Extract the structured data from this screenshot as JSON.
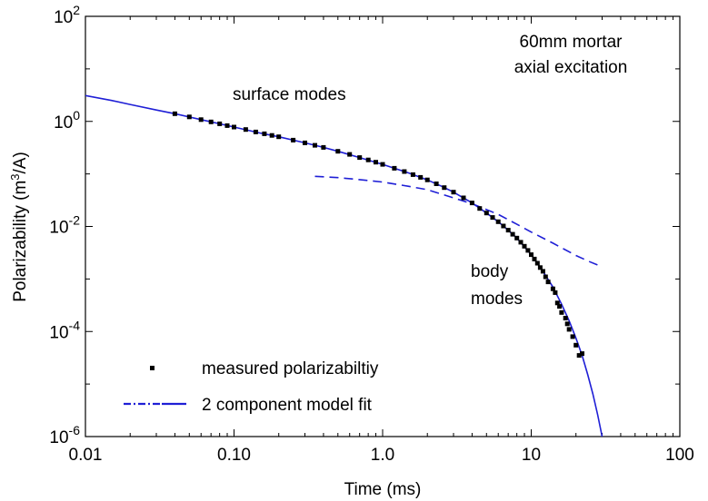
{
  "chart_data": {
    "type": "scatter",
    "xlabel": "Time (ms)",
    "ylabel_main": "Polarizability (m",
    "ylabel_sup": "3",
    "ylabel_tail": "/A)",
    "xscale": "log",
    "yscale": "log",
    "xlim": [
      0.01,
      100
    ],
    "ylim": [
      1e-06,
      100
    ],
    "x_ticks": [
      {
        "value": 0.01,
        "label": "0.01"
      },
      {
        "value": 0.1,
        "label": "0.10"
      },
      {
        "value": 1,
        "label": "1.0"
      },
      {
        "value": 10,
        "label": "10"
      },
      {
        "value": 100,
        "label": "100"
      }
    ],
    "y_ticks": [
      {
        "value": 1e-06,
        "base": "10",
        "exp": "-6"
      },
      {
        "value": 0.0001,
        "base": "10",
        "exp": "-4"
      },
      {
        "value": 0.01,
        "base": "10",
        "exp": "-2"
      },
      {
        "value": 1,
        "base": "10",
        "exp": "0"
      },
      {
        "value": 100,
        "base": "10",
        "exp": "2"
      }
    ],
    "grid": false,
    "legend_position": "bottom-left",
    "colors": {
      "fit": "#1f1fd6",
      "measured": "#000000"
    },
    "annotations": [
      {
        "lines": [
          "60mm mortar",
          "axial excitation"
        ],
        "anchor": "top-right"
      },
      {
        "lines": [
          "surface modes"
        ],
        "anchor": "upper-left"
      },
      {
        "lines": [
          "body",
          "modes"
        ],
        "anchor": "right"
      }
    ],
    "series": [
      {
        "name": "measured polarizabiltiy",
        "style": "markers",
        "points": [
          [
            0.04,
            1.4
          ],
          [
            0.05,
            1.22
          ],
          [
            0.06,
            1.08
          ],
          [
            0.07,
            0.98
          ],
          [
            0.08,
            0.9
          ],
          [
            0.09,
            0.83
          ],
          [
            0.1,
            0.78
          ],
          [
            0.12,
            0.7
          ],
          [
            0.14,
            0.63
          ],
          [
            0.16,
            0.58
          ],
          [
            0.18,
            0.54
          ],
          [
            0.2,
            0.51
          ],
          [
            0.25,
            0.44
          ],
          [
            0.3,
            0.39
          ],
          [
            0.35,
            0.35
          ],
          [
            0.4,
            0.32
          ],
          [
            0.5,
            0.27
          ],
          [
            0.6,
            0.235
          ],
          [
            0.7,
            0.205
          ],
          [
            0.8,
            0.185
          ],
          [
            0.9,
            0.167
          ],
          [
            1.0,
            0.152
          ],
          [
            1.2,
            0.128
          ],
          [
            1.4,
            0.111
          ],
          [
            1.6,
            0.097
          ],
          [
            1.8,
            0.086
          ],
          [
            2.0,
            0.077
          ],
          [
            2.3,
            0.065
          ],
          [
            2.6,
            0.055
          ],
          [
            3.0,
            0.045
          ],
          [
            3.5,
            0.035
          ],
          [
            4.0,
            0.028
          ],
          [
            4.5,
            0.022
          ],
          [
            5.0,
            0.018
          ],
          [
            5.5,
            0.0148
          ],
          [
            6.0,
            0.0123
          ],
          [
            6.5,
            0.0102
          ],
          [
            7.0,
            0.0085
          ],
          [
            7.5,
            0.0071
          ],
          [
            8.0,
            0.006
          ],
          [
            8.5,
            0.005
          ],
          [
            9.0,
            0.0042
          ],
          [
            9.5,
            0.0035
          ],
          [
            10,
            0.0029
          ],
          [
            10.5,
            0.0024
          ],
          [
            11,
            0.002
          ],
          [
            11.5,
            0.00165
          ],
          [
            12,
            0.0014
          ],
          [
            12.5,
            0.0011
          ],
          [
            13,
            0.00088
          ],
          [
            14,
            0.00065
          ],
          [
            14.5,
            0.00055
          ],
          [
            15,
            0.00035
          ],
          [
            15.5,
            0.0003
          ],
          [
            16,
            0.00023
          ],
          [
            17,
            0.00018
          ],
          [
            17.5,
            0.00014
          ],
          [
            18,
            0.00011
          ],
          [
            19,
            8e-05
          ],
          [
            20,
            5.5e-05
          ],
          [
            21,
            3.5e-05
          ],
          [
            22,
            3.8e-05
          ]
        ]
      },
      {
        "name": "2 component model fit",
        "style": "line",
        "points": [
          [
            0.01,
            3.1
          ],
          [
            0.015,
            2.5
          ],
          [
            0.02,
            2.1
          ],
          [
            0.03,
            1.65
          ],
          [
            0.04,
            1.4
          ],
          [
            0.06,
            1.08
          ],
          [
            0.08,
            0.9
          ],
          [
            0.1,
            0.78
          ],
          [
            0.15,
            0.6
          ],
          [
            0.2,
            0.51
          ],
          [
            0.3,
            0.39
          ],
          [
            0.4,
            0.32
          ],
          [
            0.5,
            0.27
          ],
          [
            0.7,
            0.205
          ],
          [
            1.0,
            0.152
          ],
          [
            1.5,
            0.104
          ],
          [
            2.0,
            0.077
          ],
          [
            2.5,
            0.058
          ],
          [
            3.0,
            0.045
          ],
          [
            4.0,
            0.028
          ],
          [
            5.0,
            0.018
          ],
          [
            6.0,
            0.0123
          ],
          [
            7.0,
            0.0085
          ],
          [
            8.0,
            0.006
          ],
          [
            10,
            0.0029
          ],
          [
            12,
            0.0014
          ],
          [
            14,
            0.0007
          ],
          [
            16,
            0.00033
          ],
          [
            18,
            0.00016
          ],
          [
            20,
            7.5e-05
          ],
          [
            22,
            3.5e-05
          ],
          [
            24,
            1.5e-05
          ],
          [
            26,
            6.5e-06
          ],
          [
            28,
            2.6e-06
          ],
          [
            30,
            1e-06
          ]
        ]
      },
      {
        "name": "body modes component",
        "style": "dash",
        "points": [
          [
            0.35,
            0.09
          ],
          [
            0.5,
            0.085
          ],
          [
            0.7,
            0.078
          ],
          [
            1.0,
            0.07
          ],
          [
            1.5,
            0.058
          ],
          [
            2.0,
            0.05
          ],
          [
            3.0,
            0.035
          ],
          [
            4.0,
            0.027
          ],
          [
            6.0,
            0.017
          ],
          [
            8.0,
            0.011
          ],
          [
            10,
            0.0078
          ],
          [
            14,
            0.0048
          ],
          [
            20,
            0.0028
          ],
          [
            25,
            0.0021
          ],
          [
            30,
            0.0017
          ]
        ]
      }
    ]
  }
}
